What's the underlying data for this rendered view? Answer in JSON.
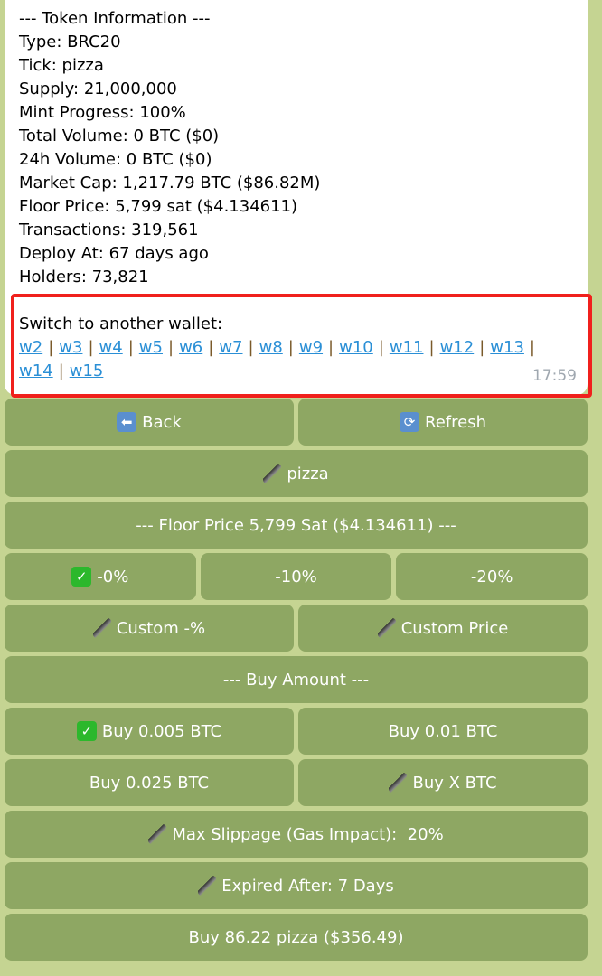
{
  "message": {
    "lines": [
      "--- Token Information ---",
      "Type: BRC20",
      "Tick: pizza",
      "Supply: 21,000,000",
      "Mint Progress: 100%",
      "Total Volume: 0 BTC ($0)",
      "24h Volume: 0 BTC ($0)",
      "Market Cap: 1,217.79 BTC ($86.82M)",
      "Floor Price: 5,799 sat ($4.134611)",
      "Transactions: 319,561",
      "Deploy At: 67 days ago",
      "Holders: 73,821"
    ],
    "switch_label": "Switch to another wallet:",
    "wallets": [
      "w2",
      "w3",
      "w4",
      "w5",
      "w6",
      "w7",
      "w8",
      "w9",
      "w10",
      "w11",
      "w12",
      "w13",
      "w14",
      "w15"
    ],
    "time": "17:59"
  },
  "keyboard": [
    [
      {
        "label": "Back",
        "icon": "back-arrow-icon"
      },
      {
        "label": "Refresh",
        "icon": "refresh-icon"
      }
    ],
    [
      {
        "label": "pizza",
        "icon": "pen-icon"
      }
    ],
    [
      {
        "label": "--- Floor Price 5,799 Sat ($4.134611) ---"
      }
    ],
    [
      {
        "label": "-0%",
        "icon": "check-icon"
      },
      {
        "label": "-10%"
      },
      {
        "label": "-20%"
      }
    ],
    [
      {
        "label": "Custom -%",
        "icon": "pen-icon"
      },
      {
        "label": "Custom Price",
        "icon": "pen-icon"
      }
    ],
    [
      {
        "label": "--- Buy Amount ---"
      }
    ],
    [
      {
        "label": "Buy 0.005 BTC",
        "icon": "check-icon"
      },
      {
        "label": "Buy 0.01 BTC"
      }
    ],
    [
      {
        "label": "Buy 0.025 BTC"
      },
      {
        "label": "Buy X BTC",
        "icon": "pen-icon"
      }
    ],
    [
      {
        "label": "Max Slippage (Gas Impact):  20%",
        "icon": "pen-icon"
      }
    ],
    [
      {
        "label": "Expired After: 7 Days",
        "icon": "pen-icon"
      }
    ],
    [
      {
        "label": "Buy 86.22 pizza ($356.49)"
      }
    ]
  ]
}
